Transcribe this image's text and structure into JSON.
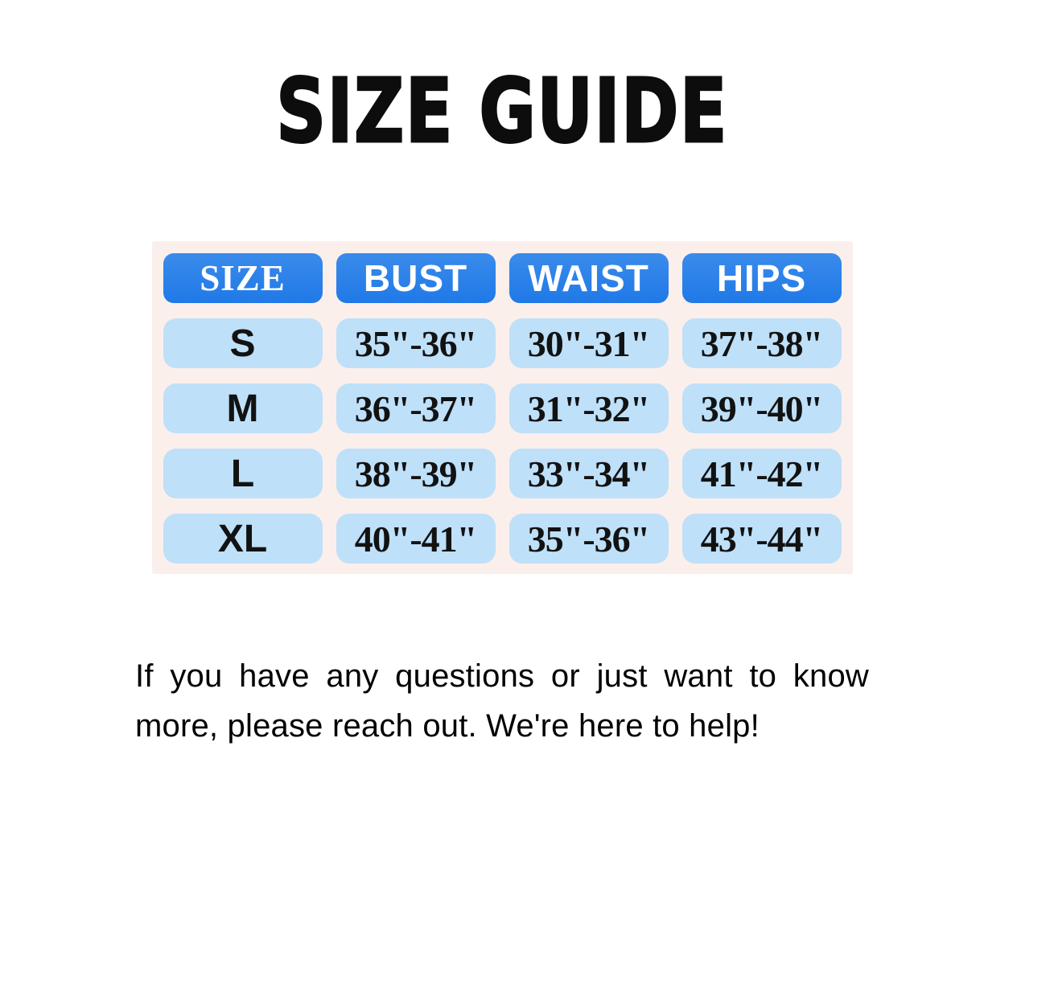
{
  "page": {
    "title": "SIZE GUIDE",
    "note": "If you have any questions or just want to know more, please reach out. We're here to help!"
  },
  "chart_data": {
    "type": "table",
    "title": "SIZE GUIDE",
    "columns": [
      "SIZE",
      "BUST",
      "WAIST",
      "HIPS"
    ],
    "rows": [
      {
        "size": "S",
        "bust": "35\"-36\"",
        "waist": "30\"-31\"",
        "hips": "37\"-38\""
      },
      {
        "size": "M",
        "bust": "36\"-37\"",
        "waist": "31\"-32\"",
        "hips": "39\"-40\""
      },
      {
        "size": "L",
        "bust": "38\"-39\"",
        "waist": "33\"-34\"",
        "hips": "41\"-42\""
      },
      {
        "size": "XL",
        "bust": "40\"-41\"",
        "waist": "35\"-36\"",
        "hips": "43\"-44\""
      }
    ],
    "units": "inches",
    "colors": {
      "header_bg": "#2380ea",
      "header_text": "#ffffff",
      "cell_bg": "#bee0f8",
      "cell_text": "#121212",
      "table_bg": "#fbefec",
      "page_bg": "#ffffff"
    }
  }
}
